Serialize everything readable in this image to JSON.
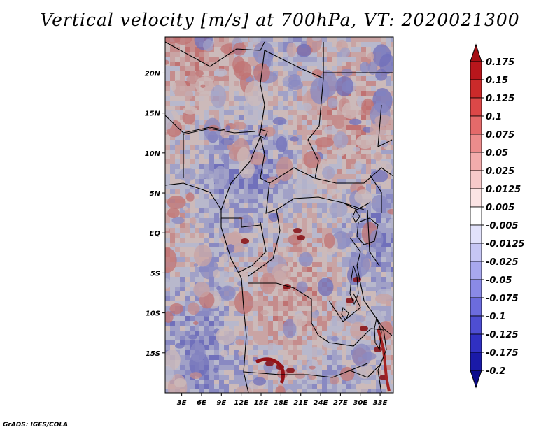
{
  "title": "Vertical velocity [m/s] at 700hPa, VT: 2020021300",
  "credit": "GrADS: IGES/COLA",
  "map": {
    "variable": "Vertical velocity",
    "units": "m/s",
    "level": "700hPa",
    "valid_time": "2020021300",
    "lat_labels": [
      "20N",
      "15N",
      "10N",
      "5N",
      "EQ",
      "5S",
      "10S",
      "15S"
    ],
    "lon_labels": [
      "3E",
      "6E",
      "9E",
      "12E",
      "15E",
      "18E",
      "21E",
      "24E",
      "27E",
      "30E",
      "33E"
    ],
    "lat_values": [
      20,
      15,
      10,
      5,
      0,
      -5,
      -10,
      -15
    ],
    "lon_values": [
      3,
      6,
      9,
      12,
      15,
      18,
      21,
      24,
      27,
      30,
      33
    ],
    "lat_range": [
      -20,
      24.5
    ],
    "lon_range": [
      0.5,
      35
    ]
  },
  "colorbar": {
    "labels": [
      "0.175",
      "0.15",
      "0.125",
      "0.1",
      "0.075",
      "0.05",
      "0.025",
      "0.0125",
      "0.005",
      "-0.005",
      "-0.0125",
      "-0.025",
      "-0.05",
      "-0.075",
      "-0.1",
      "-0.125",
      "-0.175",
      "-0.2"
    ],
    "colors": [
      "#a50f15",
      "#b8161c",
      "#cb2a2a",
      "#dc4848",
      "#e46a6a",
      "#ec8c8c",
      "#f2acac",
      "#f7caca",
      "#fbe4e4",
      "#ffffff",
      "#e2e2fb",
      "#c6c6f4",
      "#a8a8ee",
      "#8a8ae6",
      "#6c6cdd",
      "#4e4ed2",
      "#3030c2",
      "#1a1aa8",
      "#0b0b8c"
    ]
  }
}
